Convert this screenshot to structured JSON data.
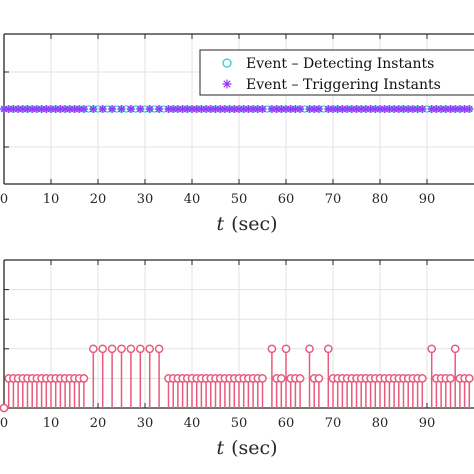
{
  "chart_data": [
    {
      "type": "scatter",
      "xlabel_var": "t",
      "xlabel_unit": "(sec)",
      "xlim": [
        0,
        100
      ],
      "x_ticks": [
        "0",
        "10",
        "20",
        "30",
        "40",
        "50",
        "60",
        "70",
        "80",
        "90"
      ],
      "grid": true,
      "legend_position": "top-right",
      "legend": [
        {
          "label": "Event – Detecting Instants",
          "marker": "circle",
          "color": "#33cccc"
        },
        {
          "label": "Event – Triggering Instants",
          "marker": "asterisk",
          "color": "#9933ff"
        }
      ],
      "detecting_instants": [
        0,
        1,
        2,
        3,
        4,
        5,
        6,
        7,
        8,
        9,
        10,
        11,
        12,
        13,
        14,
        15,
        16,
        17,
        18,
        19,
        20,
        21,
        22,
        23,
        24,
        25,
        26,
        27,
        28,
        29,
        30,
        31,
        32,
        33,
        34,
        35,
        36,
        37,
        38,
        39,
        40,
        41,
        42,
        43,
        44,
        45,
        46,
        47,
        48,
        49,
        50,
        51,
        52,
        53,
        54,
        55,
        56,
        57,
        58,
        59,
        60,
        61,
        62,
        63,
        64,
        65,
        66,
        67,
        68,
        69,
        70,
        71,
        72,
        73,
        74,
        75,
        76,
        77,
        78,
        79,
        80,
        81,
        82,
        83,
        84,
        85,
        86,
        87,
        88,
        89,
        90,
        91,
        92,
        93,
        94,
        95,
        96,
        97,
        98,
        99
      ],
      "triggering_instants": [
        0,
        1,
        2,
        3,
        4,
        5,
        6,
        7,
        8,
        9,
        10,
        11,
        12,
        13,
        14,
        15,
        16,
        17,
        19,
        21,
        23,
        25,
        27,
        29,
        31,
        33,
        35,
        36,
        37,
        38,
        39,
        40,
        41,
        42,
        43,
        44,
        45,
        46,
        47,
        48,
        49,
        50,
        51,
        52,
        53,
        54,
        55,
        57,
        58,
        59,
        60,
        61,
        62,
        63,
        65,
        66,
        67,
        69,
        70,
        71,
        72,
        73,
        74,
        75,
        76,
        77,
        78,
        79,
        80,
        81,
        82,
        83,
        84,
        85,
        86,
        87,
        88,
        89,
        91,
        92,
        93,
        94,
        95,
        96,
        97,
        98,
        99
      ]
    },
    {
      "type": "stem",
      "xlabel_var": "t",
      "xlabel_unit": "(sec)",
      "xlim": [
        0,
        100
      ],
      "ylim": [
        0,
        5
      ],
      "x_ticks": [
        "0",
        "10",
        "20",
        "30",
        "40",
        "50",
        "60",
        "70",
        "80",
        "90"
      ],
      "grid": true,
      "color": "#e85a7e",
      "x": [
        0,
        1,
        2,
        3,
        4,
        5,
        6,
        7,
        8,
        9,
        10,
        11,
        12,
        13,
        14,
        15,
        16,
        17,
        19,
        21,
        23,
        25,
        27,
        29,
        31,
        33,
        35,
        36,
        37,
        38,
        39,
        40,
        41,
        42,
        43,
        44,
        45,
        46,
        47,
        48,
        49,
        50,
        51,
        52,
        53,
        54,
        55,
        57,
        58,
        59,
        60,
        61,
        62,
        63,
        65,
        66,
        67,
        69,
        70,
        71,
        72,
        73,
        74,
        75,
        76,
        77,
        78,
        79,
        80,
        81,
        82,
        83,
        84,
        85,
        86,
        87,
        88,
        89,
        91,
        92,
        93,
        94,
        95,
        96,
        97,
        98,
        99
      ],
      "y": [
        0,
        1,
        1,
        1,
        1,
        1,
        1,
        1,
        1,
        1,
        1,
        1,
        1,
        1,
        1,
        1,
        1,
        1,
        2,
        2,
        2,
        2,
        2,
        2,
        2,
        2,
        1,
        1,
        1,
        1,
        1,
        1,
        1,
        1,
        1,
        1,
        1,
        1,
        1,
        1,
        1,
        1,
        1,
        1,
        1,
        1,
        1,
        2,
        1,
        1,
        2,
        1,
        1,
        1,
        2,
        1,
        1,
        2,
        1,
        1,
        1,
        1,
        1,
        1,
        1,
        1,
        1,
        1,
        1,
        1,
        1,
        1,
        1,
        1,
        1,
        1,
        1,
        1,
        2,
        1,
        1,
        1,
        1,
        2,
        1,
        1,
        1
      ]
    }
  ]
}
